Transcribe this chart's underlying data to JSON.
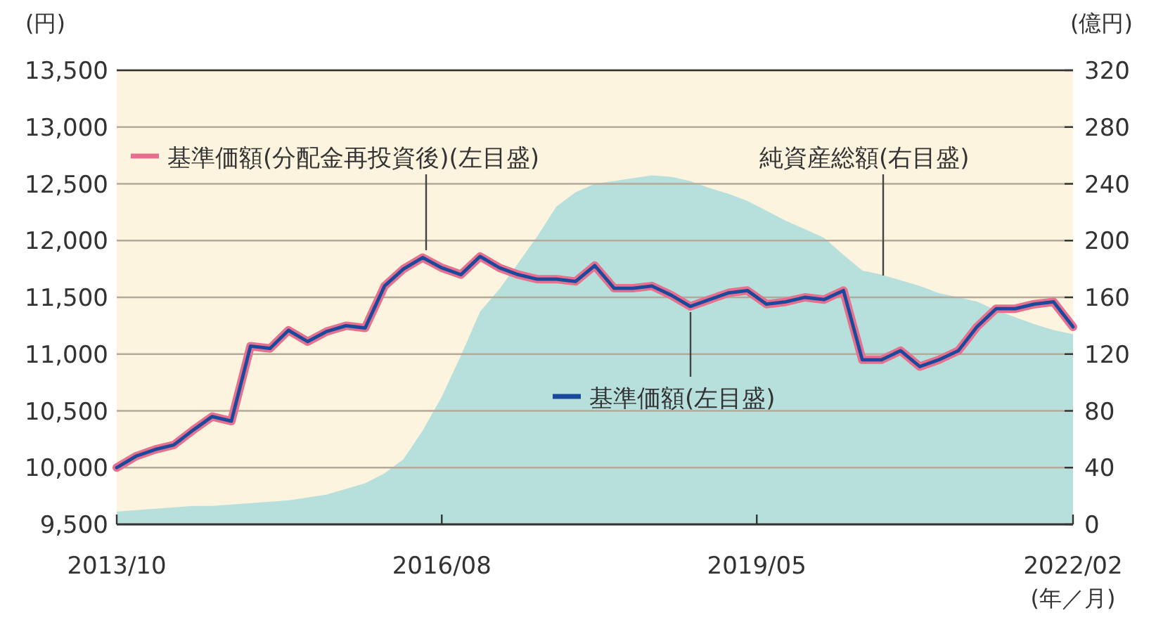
{
  "chart_data": {
    "type": "line",
    "ylabel": "(円)",
    "y2label": "(億円)",
    "xlabel": "(年／月)",
    "x": [
      "2013-10",
      "2013-12",
      "2014-02",
      "2014-04",
      "2014-06",
      "2014-08",
      "2014-10",
      "2014-12",
      "2015-02",
      "2015-04",
      "2015-06",
      "2015-08",
      "2015-10",
      "2015-12",
      "2016-02",
      "2016-04",
      "2016-06",
      "2016-08",
      "2016-10",
      "2016-12",
      "2017-02",
      "2017-04",
      "2017-06",
      "2017-08",
      "2017-10",
      "2017-12",
      "2018-02",
      "2018-04",
      "2018-06",
      "2018-08",
      "2018-10",
      "2018-12",
      "2019-02",
      "2019-04",
      "2019-06",
      "2019-08",
      "2019-10",
      "2019-12",
      "2020-02",
      "2020-04",
      "2020-06",
      "2020-08",
      "2020-10",
      "2020-12",
      "2021-02",
      "2021-04",
      "2021-06",
      "2021-08",
      "2021-10",
      "2021-12",
      "2022-02"
    ],
    "series": [
      {
        "name": "純資産総額(右目盛)",
        "type": "area",
        "axis": "y2",
        "color": "#b7e0dd",
        "values": [
          9,
          10,
          11,
          12,
          13,
          13,
          14,
          15,
          16,
          17,
          19,
          21,
          25,
          29,
          36,
          46,
          66,
          90,
          119,
          150,
          166,
          184,
          203,
          224,
          234,
          240,
          242,
          244,
          246,
          245,
          242,
          237,
          233,
          228,
          221,
          214,
          208,
          202,
          190,
          179,
          176,
          172,
          168,
          163,
          160,
          157,
          151,
          146,
          141,
          137,
          134
        ]
      },
      {
        "name": "基準価額(分配金再投資後)(左目盛)",
        "color": "#e8708f",
        "values": [
          10000,
          10100,
          10160,
          10200,
          10330,
          10450,
          10410,
          11070,
          11050,
          11210,
          11110,
          11200,
          11250,
          11230,
          11600,
          11750,
          11850,
          11760,
          11700,
          11860,
          11760,
          11700,
          11660,
          11660,
          11640,
          11780,
          11580,
          11580,
          11600,
          11520,
          11420,
          11480,
          11540,
          11560,
          11440,
          11460,
          11500,
          11480,
          11560,
          10950,
          10950,
          11030,
          10890,
          10950,
          11030,
          11240,
          11400,
          11400,
          11440,
          11460,
          11240
        ]
      },
      {
        "name": "基準価額(左目盛)",
        "color": "#1b4a9c",
        "values": [
          10000,
          10100,
          10160,
          10200,
          10330,
          10450,
          10410,
          11070,
          11050,
          11210,
          11110,
          11200,
          11250,
          11230,
          11600,
          11750,
          11850,
          11760,
          11700,
          11860,
          11760,
          11700,
          11660,
          11660,
          11640,
          11780,
          11580,
          11580,
          11600,
          11520,
          11420,
          11480,
          11540,
          11560,
          11440,
          11460,
          11500,
          11480,
          11560,
          10950,
          10950,
          11030,
          10890,
          10950,
          11030,
          11240,
          11400,
          11400,
          11440,
          11460,
          11240
        ]
      }
    ],
    "xlim": [
      "2013-10",
      "2022-02"
    ],
    "xticks": [
      {
        "value": "2013-10",
        "label": "2013/10"
      },
      {
        "value": "2016-08",
        "label": "2016/08"
      },
      {
        "value": "2019-05",
        "label": "2019/05"
      },
      {
        "value": "2022-02",
        "label": "2022/02"
      }
    ],
    "ylim": [
      9500,
      13500
    ],
    "yticks": [
      {
        "value": 9500,
        "label": "9,500"
      },
      {
        "value": 10000,
        "label": "10,000"
      },
      {
        "value": 10500,
        "label": "10,500"
      },
      {
        "value": 11000,
        "label": "11,000"
      },
      {
        "value": 11500,
        "label": "11,500"
      },
      {
        "value": 12000,
        "label": "12,000"
      },
      {
        "value": 12500,
        "label": "12,500"
      },
      {
        "value": 13000,
        "label": "13,000"
      },
      {
        "value": 13500,
        "label": "13,500"
      }
    ],
    "y2lim": [
      0,
      320
    ],
    "y2ticks": [
      0,
      40,
      80,
      120,
      160,
      200,
      240,
      280,
      320
    ],
    "grid": "y",
    "legend": "top left"
  }
}
